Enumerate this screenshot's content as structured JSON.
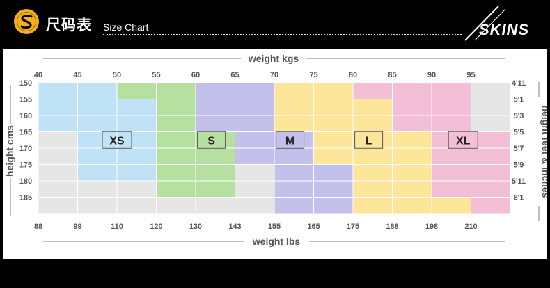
{
  "header": {
    "title_cn": "尺码表",
    "title_en": "Size Chart",
    "brand": "SKINS",
    "logo_icon": "s-circle-logo-icon",
    "logo_color": "#f3b11c"
  },
  "chart_data": {
    "type": "heatmap",
    "top_axis_label": "weight kgs",
    "bottom_axis_label": "weight lbs",
    "left_axis_label": "height cms",
    "right_axis_label": "height feet & inches",
    "weight_kgs_ticks": [
      "40",
      "45",
      "50",
      "55",
      "60",
      "65",
      "70",
      "75",
      "80",
      "85",
      "90",
      "95"
    ],
    "weight_lbs_ticks": [
      "88",
      "99",
      "110",
      "120",
      "130",
      "143",
      "155",
      "165",
      "175",
      "188",
      "198",
      "210"
    ],
    "height_cms_ticks": [
      "150",
      "155",
      "160",
      "165",
      "170",
      "175",
      "180",
      "185"
    ],
    "height_ft_ticks": [
      "4'11",
      "5'1",
      "5'3",
      "5'5",
      "5'7",
      "5'9",
      "5'11",
      "6'1"
    ],
    "sizes": [
      {
        "name": "XS",
        "color": "#bfe2f7",
        "cells": [
          [
            40,
            150
          ],
          [
            45,
            150
          ],
          [
            40,
            155
          ],
          [
            45,
            155
          ],
          [
            50,
            155
          ],
          [
            40,
            160
          ],
          [
            45,
            160
          ],
          [
            50,
            160
          ],
          [
            45,
            165
          ],
          [
            50,
            165
          ],
          [
            45,
            170
          ],
          [
            50,
            170
          ],
          [
            45,
            175
          ],
          [
            50,
            175
          ]
        ]
      },
      {
        "name": "S",
        "color": "#b6e0a0",
        "cells": [
          [
            50,
            150
          ],
          [
            55,
            150
          ],
          [
            55,
            155
          ],
          [
            55,
            160
          ],
          [
            60,
            165
          ],
          [
            60,
            170
          ],
          [
            60,
            175
          ],
          [
            60,
            180
          ],
          [
            55,
            165
          ],
          [
            55,
            170
          ],
          [
            55,
            175
          ],
          [
            55,
            180
          ]
        ]
      },
      {
        "name": "M",
        "color": "#c4c0ec",
        "cells": [
          [
            60,
            150
          ],
          [
            65,
            150
          ],
          [
            60,
            155
          ],
          [
            65,
            155
          ],
          [
            60,
            160
          ],
          [
            65,
            160
          ],
          [
            65,
            165
          ],
          [
            70,
            165
          ],
          [
            65,
            170
          ],
          [
            70,
            170
          ],
          [
            70,
            175
          ],
          [
            70,
            180
          ],
          [
            75,
            175
          ],
          [
            75,
            180
          ],
          [
            70,
            185
          ],
          [
            75,
            185
          ]
        ]
      },
      {
        "name": "L",
        "color": "#fde59a",
        "cells": [
          [
            70,
            150
          ],
          [
            75,
            150
          ],
          [
            70,
            155
          ],
          [
            75,
            155
          ],
          [
            80,
            155
          ],
          [
            70,
            160
          ],
          [
            75,
            160
          ],
          [
            80,
            160
          ],
          [
            75,
            165
          ],
          [
            80,
            165
          ],
          [
            85,
            165
          ],
          [
            75,
            170
          ],
          [
            80,
            170
          ],
          [
            85,
            170
          ],
          [
            80,
            175
          ],
          [
            85,
            175
          ],
          [
            80,
            180
          ],
          [
            85,
            180
          ],
          [
            80,
            185
          ],
          [
            85,
            185
          ],
          [
            90,
            185
          ]
        ]
      },
      {
        "name": "XL",
        "color": "#f2bfd6",
        "cells": [
          [
            80,
            150
          ],
          [
            85,
            150
          ],
          [
            90,
            150
          ],
          [
            85,
            155
          ],
          [
            90,
            155
          ],
          [
            85,
            160
          ],
          [
            90,
            160
          ],
          [
            90,
            165
          ],
          [
            95,
            165
          ],
          [
            90,
            170
          ],
          [
            95,
            170
          ],
          [
            90,
            175
          ],
          [
            95,
            175
          ],
          [
            90,
            180
          ],
          [
            95,
            180
          ],
          [
            95,
            185
          ]
        ]
      }
    ],
    "empty_color": "#e6e6e6"
  }
}
